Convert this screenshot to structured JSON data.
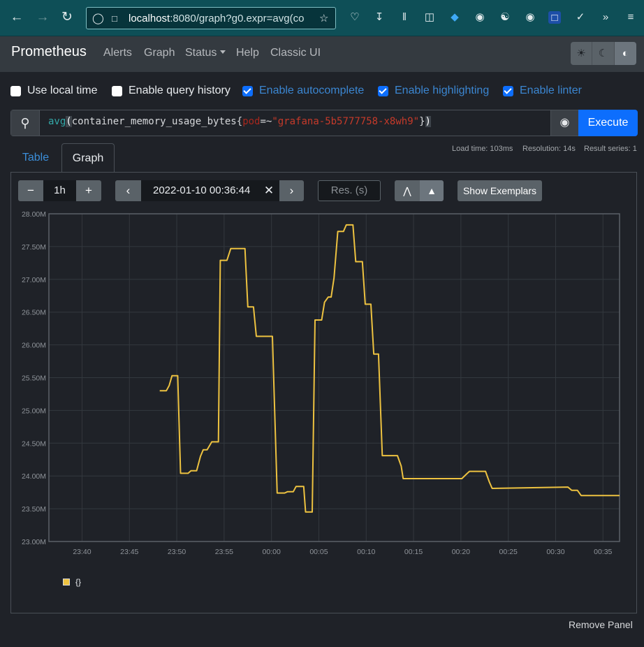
{
  "browser": {
    "url_host": "localhost",
    "url_rest": ":8080/graph?g0.expr=avg(co"
  },
  "navbar": {
    "brand": "Prometheus",
    "links": [
      "Alerts",
      "Graph",
      "Status",
      "Help",
      "Classic UI"
    ]
  },
  "options": [
    {
      "label": "Use local time",
      "checked": false
    },
    {
      "label": "Enable query history",
      "checked": false
    },
    {
      "label": "Enable autocomplete",
      "checked": true
    },
    {
      "label": "Enable highlighting",
      "checked": true
    },
    {
      "label": "Enable linter",
      "checked": true
    }
  ],
  "expression": {
    "fn": "avg",
    "metric": "container_memory_usage_bytes",
    "label": "pod",
    "op": "=~",
    "value": "\"grafana-5b5777758-x8wh9\""
  },
  "execute_label": "Execute",
  "stats": {
    "load_time": "Load time: 103ms",
    "resolution": "Resolution: 14s",
    "result_series": "Result series: 1"
  },
  "tabs": {
    "table": "Table",
    "graph": "Graph"
  },
  "controls": {
    "range": "1h",
    "end_time": "2022-01-10 00:36:44",
    "resolution_placeholder": "Res. (s)",
    "show_exemplars": "Show Exemplars"
  },
  "legend": {
    "series_label": "{}"
  },
  "remove_panel": "Remove Panel",
  "colors": {
    "series": "#edc240",
    "accent": "#0d6efd"
  },
  "chart_data": {
    "type": "line",
    "yticks": [
      "23.00M",
      "23.50M",
      "24.00M",
      "24.50M",
      "25.00M",
      "25.50M",
      "26.00M",
      "26.50M",
      "27.00M",
      "27.50M",
      "28.00M"
    ],
    "xticks": [
      "23:40",
      "23:45",
      "23:50",
      "23:55",
      "00:00",
      "00:05",
      "00:10",
      "00:15",
      "00:20",
      "00:25",
      "00:30",
      "00:35"
    ],
    "ylim": [
      23.0,
      28.0
    ],
    "y_unit": "M",
    "x_minutes_range": [
      -23.5,
      36.75
    ],
    "series": [
      {
        "name": "{}",
        "points": [
          [
            -11.8,
            25.3
          ],
          [
            -11.1,
            25.3
          ],
          [
            -10.8,
            25.38
          ],
          [
            -10.5,
            25.53
          ],
          [
            -9.9,
            25.53
          ],
          [
            -9.6,
            24.04
          ],
          [
            -8.8,
            24.04
          ],
          [
            -8.5,
            24.08
          ],
          [
            -7.9,
            24.08
          ],
          [
            -7.5,
            24.3
          ],
          [
            -7.2,
            24.4
          ],
          [
            -6.8,
            24.4
          ],
          [
            -6.3,
            24.52
          ],
          [
            -5.6,
            24.52
          ],
          [
            -5.4,
            27.29
          ],
          [
            -4.7,
            27.29
          ],
          [
            -4.3,
            27.47
          ],
          [
            -2.8,
            27.47
          ],
          [
            -2.5,
            26.58
          ],
          [
            -1.9,
            26.58
          ],
          [
            -1.6,
            26.13
          ],
          [
            0.1,
            26.13
          ],
          [
            0.6,
            23.74
          ],
          [
            1.4,
            23.74
          ],
          [
            1.7,
            23.76
          ],
          [
            2.3,
            23.76
          ],
          [
            2.6,
            23.84
          ],
          [
            3.4,
            23.84
          ],
          [
            3.6,
            23.45
          ],
          [
            4.3,
            23.45
          ],
          [
            4.6,
            26.38
          ],
          [
            5.3,
            26.38
          ],
          [
            5.6,
            26.65
          ],
          [
            6.0,
            26.73
          ],
          [
            6.3,
            26.73
          ],
          [
            6.6,
            27.02
          ],
          [
            7.0,
            27.73
          ],
          [
            7.6,
            27.73
          ],
          [
            7.9,
            27.83
          ],
          [
            8.6,
            27.83
          ],
          [
            8.9,
            27.27
          ],
          [
            9.6,
            27.27
          ],
          [
            9.9,
            26.62
          ],
          [
            10.5,
            26.62
          ],
          [
            10.8,
            25.86
          ],
          [
            11.3,
            25.86
          ],
          [
            11.7,
            24.31
          ],
          [
            13.3,
            24.31
          ],
          [
            13.7,
            24.15
          ],
          [
            13.9,
            23.96
          ],
          [
            20.1,
            23.96
          ],
          [
            20.6,
            24.03
          ],
          [
            20.9,
            24.07
          ],
          [
            22.6,
            24.07
          ],
          [
            23.0,
            23.91
          ],
          [
            23.3,
            23.81
          ],
          [
            31.3,
            23.83
          ],
          [
            31.7,
            23.78
          ],
          [
            32.3,
            23.78
          ],
          [
            32.7,
            23.7
          ],
          [
            36.75,
            23.7
          ]
        ]
      }
    ]
  }
}
